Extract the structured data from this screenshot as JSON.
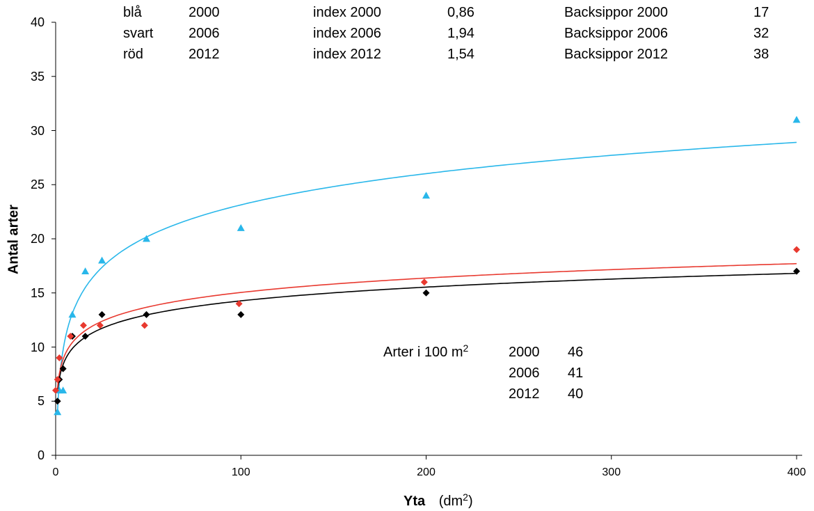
{
  "chart_data": {
    "type": "scatter",
    "title": "",
    "xlabel": "Yta",
    "xlabel_unit_prefix": "(dm",
    "xlabel_unit_sup": "2",
    "xlabel_unit_suffix": ")",
    "ylabel": "Antal arter",
    "xlim": [
      0,
      400
    ],
    "ylim": [
      0,
      40
    ],
    "x_ticks": [
      "0",
      "100",
      "200",
      "300",
      "400"
    ],
    "y_ticks": [
      "0",
      "5",
      "10",
      "15",
      "20",
      "25",
      "30",
      "35",
      "40"
    ],
    "grid": false,
    "series": [
      {
        "color": "#29B7EA",
        "marker": "triangle",
        "points": [
          [
            1,
            4
          ],
          [
            2,
            6
          ],
          [
            4,
            6
          ],
          [
            9,
            13
          ],
          [
            16,
            17
          ],
          [
            25,
            18
          ],
          [
            49,
            20
          ],
          [
            100,
            21
          ],
          [
            200,
            24
          ],
          [
            400,
            31
          ]
        ],
        "trend": {
          "type": "logarithmic",
          "a": 3.957,
          "b": 4.164
        }
      },
      {
        "color": "#000000",
        "marker": "diamond",
        "points": [
          [
            1,
            5
          ],
          [
            2,
            7
          ],
          [
            4,
            8
          ],
          [
            9,
            11
          ],
          [
            16,
            11
          ],
          [
            25,
            13
          ],
          [
            49,
            13
          ],
          [
            100,
            13
          ],
          [
            200,
            15
          ],
          [
            400,
            17
          ]
        ],
        "trend": {
          "type": "logarithmic",
          "a": 5.84,
          "b": 1.83
        }
      },
      {
        "color": "#E8392F",
        "marker": "diamond",
        "points": [
          [
            0,
            6
          ],
          [
            1,
            7
          ],
          [
            2,
            9
          ],
          [
            8,
            11
          ],
          [
            15,
            12
          ],
          [
            24,
            12
          ],
          [
            48,
            12
          ],
          [
            99,
            14
          ],
          [
            199,
            16
          ],
          [
            400,
            19
          ]
        ],
        "trend": {
          "type": "logarithmic",
          "a": 6.2,
          "b": 1.92
        }
      }
    ]
  },
  "legend_table": {
    "rows": [
      {
        "color": "blå",
        "year": "2000",
        "index_label": "index 2000",
        "index_value": "0,86",
        "backsippor_label": "Backsippor 2000",
        "backsippor_value": "17"
      },
      {
        "color": "svart",
        "year": "2006",
        "index_label": "index 2006",
        "index_value": "1,94",
        "backsippor_label": "Backsippor 2006",
        "backsippor_value": "32"
      },
      {
        "color": "röd",
        "year": "2012",
        "index_label": "index 2012",
        "index_value": "1,54",
        "backsippor_label": "Backsippor 2012",
        "backsippor_value": "38"
      }
    ]
  },
  "species_box": {
    "label_prefix": "Arter i 100 m",
    "label_sup": "2",
    "rows": [
      {
        "year": "2000",
        "value": "46"
      },
      {
        "year": "2006",
        "value": "41"
      },
      {
        "year": "2012",
        "value": "40"
      }
    ]
  }
}
